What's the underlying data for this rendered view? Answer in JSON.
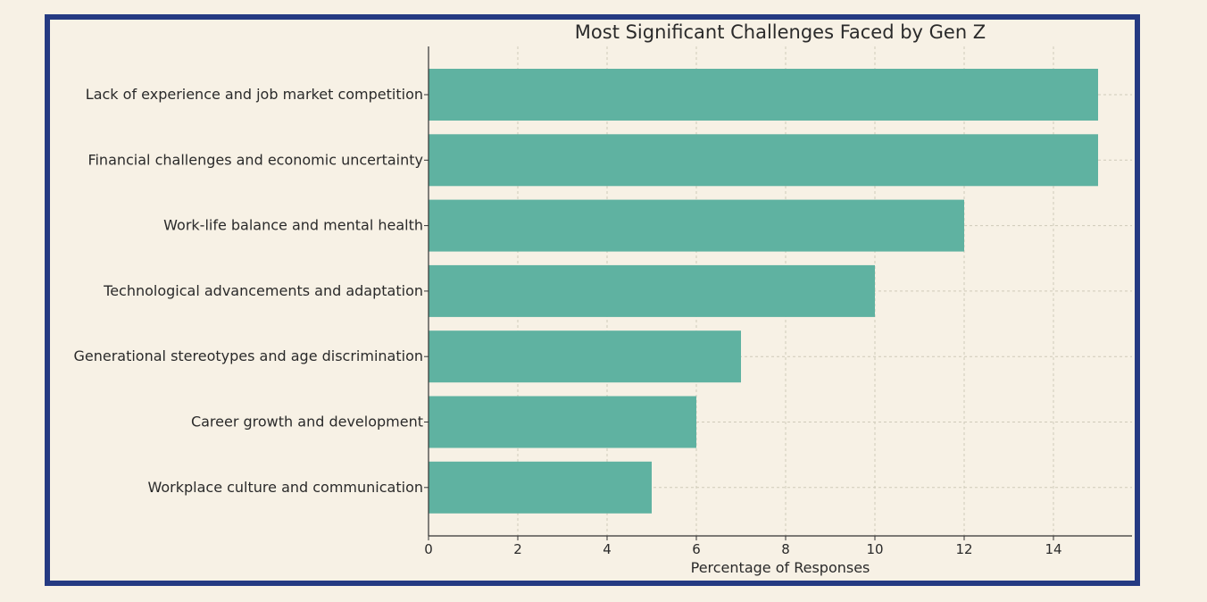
{
  "chart_data": {
    "type": "bar",
    "orientation": "horizontal",
    "title": "Most Significant Challenges Faced by Gen Z",
    "xlabel": "Percentage of Responses",
    "ylabel": "",
    "categories": [
      "Lack of experience and job market competition",
      "Financial challenges and economic uncertainty",
      "Work-life balance and mental health",
      "Technological advancements and adaptation",
      "Generational stereotypes and age discrimination",
      "Career growth and development",
      "Workplace culture and communication"
    ],
    "values": [
      15,
      15,
      12,
      10,
      7,
      6,
      5
    ],
    "xlim": [
      0,
      15.75
    ],
    "xticks": [
      0,
      2,
      4,
      6,
      8,
      10,
      12,
      14
    ],
    "grid": true,
    "legend": "none",
    "colors": {
      "bar": "#5fb2a1",
      "background": "#f7f1e5",
      "frame": "#253a82",
      "axis": "#333333",
      "grid": "#cfcab9"
    }
  }
}
